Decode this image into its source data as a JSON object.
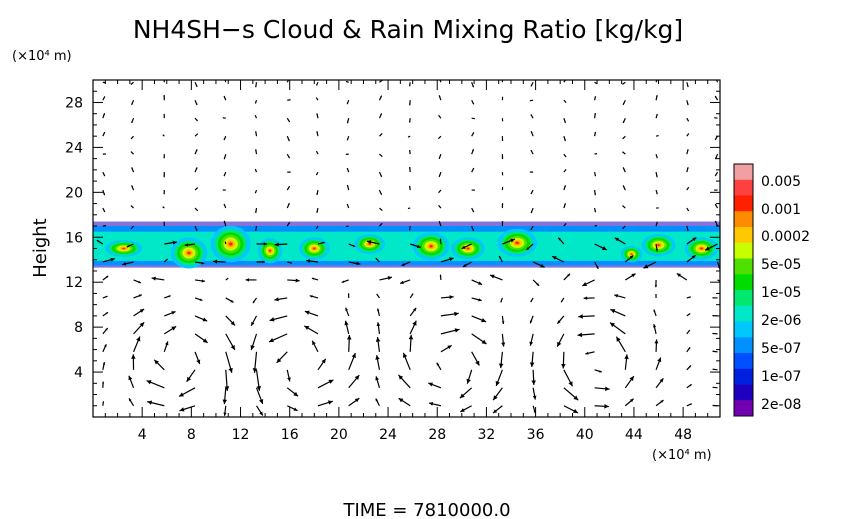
{
  "chart_data": {
    "type": "heatmap",
    "title": "NH4SH−s Cloud & Rain Mixing Ratio [kg/kg]",
    "ylabel": "Height",
    "y_unit": "(×10⁴ m)",
    "x_unit": "(×10⁴ m)",
    "xlim": [
      0,
      51
    ],
    "ylim": [
      0,
      30
    ],
    "x_ticks": [
      4,
      8,
      12,
      16,
      20,
      24,
      28,
      32,
      36,
      40,
      44,
      48
    ],
    "y_ticks": [
      4,
      8,
      12,
      16,
      20,
      24,
      28
    ],
    "x_tick_labels": [
      "4",
      "8",
      "12",
      "16",
      "20",
      "24",
      "28",
      "32",
      "36",
      "40",
      "44",
      "48"
    ],
    "y_tick_labels": [
      "4",
      "8",
      "12",
      "16",
      "20",
      "24",
      "28"
    ],
    "colorbar": {
      "labels": [
        "0.005",
        "0.001",
        "0.0002",
        "5e-05",
        "1e-05",
        "2e-06",
        "5e-07",
        "1e-07",
        "2e-08"
      ],
      "colors": [
        "#f0a0a0",
        "#ff4040",
        "#ff2000",
        "#ff8c00",
        "#ffc800",
        "#c8ff00",
        "#50e000",
        "#00dc00",
        "#00e870",
        "#00e8c8",
        "#00c8ff",
        "#0090ff",
        "#0050ff",
        "#0020e0",
        "#2000c0",
        "#7000b0"
      ]
    },
    "cloud_layer": {
      "ymin": 13.5,
      "ymax": 17.0
    },
    "cells": [
      {
        "x": 2.5,
        "y": 15.0,
        "rx": 1.2,
        "ry": 0.6,
        "level": 4
      },
      {
        "x": 7.8,
        "y": 14.6,
        "rx": 1.2,
        "ry": 1.1,
        "level": 2
      },
      {
        "x": 11.2,
        "y": 15.4,
        "rx": 1.3,
        "ry": 1.3,
        "level": 2
      },
      {
        "x": 14.4,
        "y": 14.8,
        "rx": 0.8,
        "ry": 0.9,
        "level": 1
      },
      {
        "x": 18.0,
        "y": 15.0,
        "rx": 1.0,
        "ry": 0.8,
        "level": 4
      },
      {
        "x": 22.5,
        "y": 15.4,
        "rx": 1.0,
        "ry": 0.7,
        "level": 4
      },
      {
        "x": 27.5,
        "y": 15.2,
        "rx": 1.2,
        "ry": 1.0,
        "level": 3
      },
      {
        "x": 30.5,
        "y": 15.0,
        "rx": 1.1,
        "ry": 0.8,
        "level": 4
      },
      {
        "x": 34.5,
        "y": 15.5,
        "rx": 1.3,
        "ry": 1.0,
        "level": 4
      },
      {
        "x": 43.8,
        "y": 14.5,
        "rx": 0.7,
        "ry": 0.6,
        "level": 2
      },
      {
        "x": 46.0,
        "y": 15.3,
        "rx": 1.1,
        "ry": 0.8,
        "level": 4
      },
      {
        "x": 49.5,
        "y": 15.0,
        "rx": 1.1,
        "ry": 0.8,
        "level": 4
      }
    ],
    "quiver": {
      "x_spacing": 2.5,
      "y_spacing": 1.6
    }
  },
  "footer": {
    "label": "TIME",
    "equals": "=",
    "value": "7810000.0"
  }
}
